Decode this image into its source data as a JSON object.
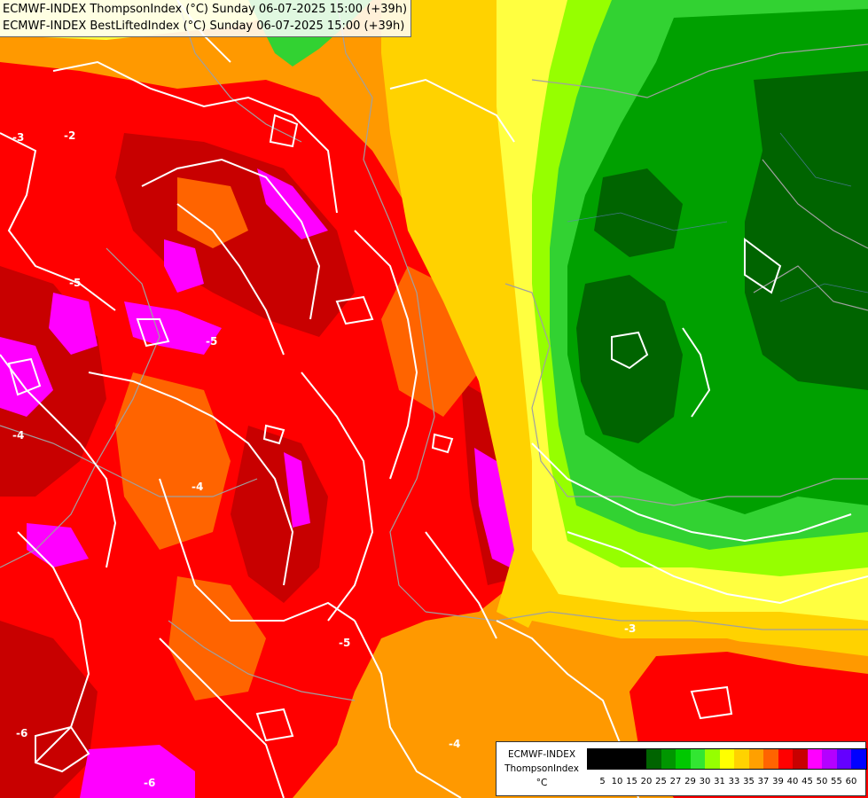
{
  "header": {
    "line1": "ECMWF-INDEX ThompsonIndex (°C) Sunday 06-07-2025 15:00 (+39h)",
    "line2": "ECMWF-INDEX BestLiftedIndex (°C) Sunday 06-07-2025 15:00 (+39h)"
  },
  "legend": {
    "title_lines": [
      "ECMWF-INDEX",
      "ThompsonIndex",
      "°C"
    ],
    "ticks": [
      "5",
      "10",
      "15",
      "20",
      "25",
      "27",
      "29",
      "30",
      "31",
      "33",
      "35",
      "37",
      "39",
      "40",
      "45",
      "50",
      "55",
      "60"
    ],
    "colors": [
      "#000000",
      "#000000",
      "#000000",
      "#000000",
      "#006400",
      "#009600",
      "#00c800",
      "#32e632",
      "#96ff00",
      "#ffff00",
      "#ffd200",
      "#ffa000",
      "#ff6400",
      "#ff0000",
      "#c80000",
      "#ff00ff",
      "#b400ff",
      "#6400ff",
      "#0000ff"
    ]
  },
  "contour_labels": [
    "-3",
    "-2",
    "-5",
    "-5",
    "-4",
    "-4",
    "-6",
    "-6",
    "-5",
    "-3",
    "-4"
  ],
  "palette": {
    "dark_green": "#006400",
    "green": "#00a000",
    "light_green": "#32d232",
    "lime": "#96ff00",
    "yellow": "#ffff40",
    "gold": "#ffd200",
    "orange": "#ff9900",
    "dark_orange": "#ff6400",
    "red": "#ff0000",
    "dark_red": "#c80000",
    "magenta": "#ff00ff"
  }
}
